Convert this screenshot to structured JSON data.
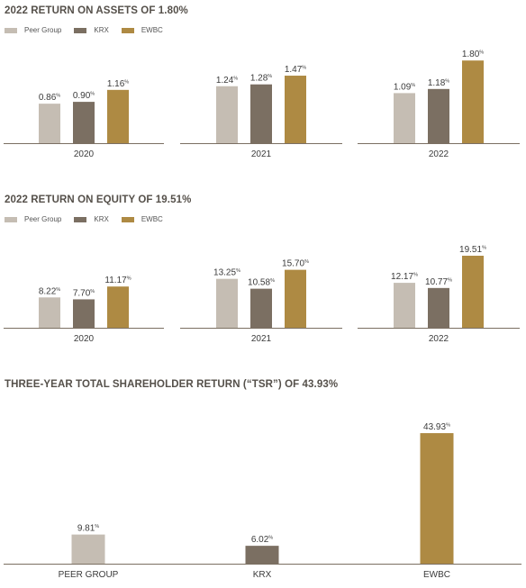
{
  "colors": {
    "peer": "#c5bdb3",
    "krx": "#7b6f62",
    "ewbc": "#ae8a43",
    "axis": "#7b6f62"
  },
  "legend": {
    "peer": "Peer Group",
    "krx": "KRX",
    "ewbc": "EWBC"
  },
  "sections": {
    "roa": {
      "title": "2022 RETURN ON ASSETS OF 1.80%"
    },
    "roe": {
      "title": "2022 RETURN ON EQUITY OF 19.51%"
    },
    "tsr": {
      "title": "THREE-YEAR TOTAL SHAREHOLDER RETURN (“TSR”) OF 43.93%"
    }
  },
  "chart_data": [
    {
      "type": "bar",
      "title": "2022 RETURN ON ASSETS OF 1.80%",
      "categories": [
        "2020",
        "2021",
        "2022"
      ],
      "series": [
        {
          "name": "Peer Group",
          "values": [
            0.86,
            1.24,
            1.09
          ],
          "labels": [
            "0.86",
            "1.24",
            "1.09"
          ]
        },
        {
          "name": "KRX",
          "values": [
            0.9,
            1.28,
            1.18
          ],
          "labels": [
            "0.90",
            "1.28",
            "1.18"
          ]
        },
        {
          "name": "EWBC",
          "values": [
            1.16,
            1.47,
            1.8
          ],
          "labels": [
            "1.16",
            "1.47",
            "1.80"
          ]
        }
      ],
      "unit": "%",
      "legend": "top-left",
      "grid": false
    },
    {
      "type": "bar",
      "title": "2022 RETURN ON EQUITY OF 19.51%",
      "categories": [
        "2020",
        "2021",
        "2022"
      ],
      "series": [
        {
          "name": "Peer Group",
          "values": [
            8.22,
            13.25,
            12.17
          ],
          "labels": [
            "8.22",
            "13.25",
            "12.17"
          ]
        },
        {
          "name": "KRX",
          "values": [
            7.7,
            10.58,
            10.77
          ],
          "labels": [
            "7.70",
            "10.58",
            "10.77"
          ]
        },
        {
          "name": "EWBC",
          "values": [
            11.17,
            15.7,
            19.51
          ],
          "labels": [
            "11.17",
            "15.70",
            "19.51"
          ]
        }
      ],
      "unit": "%",
      "legend": "top-left",
      "grid": false
    },
    {
      "type": "bar",
      "title": "THREE-YEAR TOTAL SHAREHOLDER RETURN (“TSR”) OF 43.93%",
      "categories": [
        "PEER GROUP",
        "KRX",
        "EWBC"
      ],
      "values": [
        9.81,
        6.02,
        43.93
      ],
      "labels": [
        "9.81",
        "6.02",
        "43.93"
      ],
      "unit": "%",
      "grid": false
    }
  ]
}
